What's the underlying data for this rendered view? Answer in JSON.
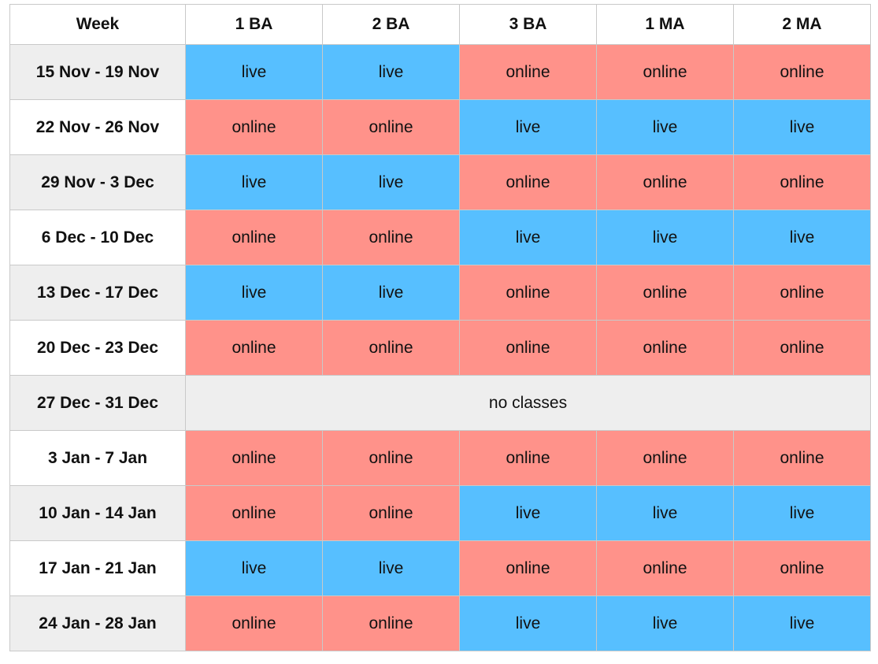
{
  "table": {
    "headers": [
      "Week",
      "1 BA",
      "2 BA",
      "3 BA",
      "1 MA",
      "2 MA"
    ],
    "rows": [
      {
        "week": "15 Nov - 19 Nov",
        "cells": [
          "live",
          "live",
          "online",
          "online",
          "online"
        ]
      },
      {
        "week": "22 Nov - 26 Nov",
        "cells": [
          "online",
          "online",
          "live",
          "live",
          "live"
        ]
      },
      {
        "week": "29 Nov - 3 Dec",
        "cells": [
          "live",
          "live",
          "online",
          "online",
          "online"
        ]
      },
      {
        "week": "6 Dec - 10 Dec",
        "cells": [
          "online",
          "online",
          "live",
          "live",
          "live"
        ]
      },
      {
        "week": "13 Dec - 17 Dec",
        "cells": [
          "live",
          "live",
          "online",
          "online",
          "online"
        ]
      },
      {
        "week": "20 Dec - 23 Dec",
        "cells": [
          "online",
          "online",
          "online",
          "online",
          "online"
        ]
      },
      {
        "week": "27 Dec - 31 Dec",
        "note": "no classes"
      },
      {
        "week": "3 Jan - 7 Jan",
        "cells": [
          "online",
          "online",
          "online",
          "online",
          "online"
        ]
      },
      {
        "week": "10 Jan - 14 Jan",
        "cells": [
          "online",
          "online",
          "live",
          "live",
          "live"
        ]
      },
      {
        "week": "17 Jan - 21 Jan",
        "cells": [
          "live",
          "live",
          "online",
          "online",
          "online"
        ]
      },
      {
        "week": "24 Jan - 28 Jan",
        "cells": [
          "online",
          "online",
          "live",
          "live",
          "live"
        ]
      }
    ]
  },
  "colors": {
    "live": "#57bfff",
    "online": "#ff928a",
    "no_classes": "#eeeeee"
  }
}
